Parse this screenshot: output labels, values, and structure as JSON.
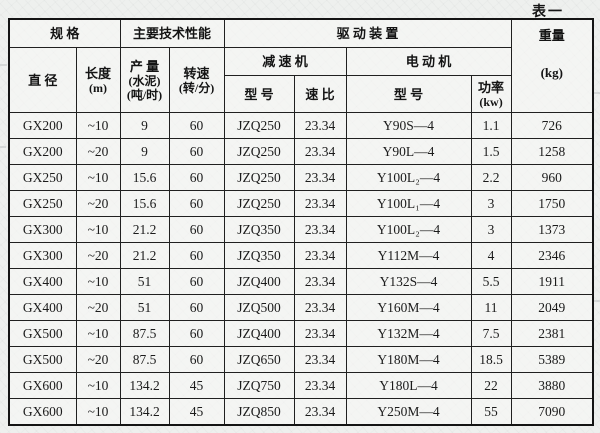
{
  "page": {
    "table_label": "表一"
  },
  "table": {
    "group_headers": {
      "spec": "规    格",
      "performance": "主要技术性能",
      "drive": "驱  动  装  置",
      "reducer": "减  速  机",
      "motor": "电  动  机"
    },
    "columns": {
      "diameter": "直  径",
      "length": [
        "长度",
        "(m)"
      ],
      "output": [
        "产 量",
        "(水泥)",
        "(吨/时)"
      ],
      "speed": [
        "转速",
        "(转/分)"
      ],
      "reducer_model": "型  号",
      "reducer_ratio": "速  比",
      "motor_model": "型      号",
      "motor_power": [
        "功率",
        "(kw)"
      ],
      "weight": [
        "重量",
        "(kg)"
      ]
    },
    "rows": [
      [
        "GX200",
        "~10",
        "9",
        "60",
        "JZQ250",
        "23.34",
        "Y90S—4",
        "1.1",
        "726"
      ],
      [
        "GX200",
        "~20",
        "9",
        "60",
        "JZQ250",
        "23.34",
        "Y90L—4",
        "1.5",
        "1258"
      ],
      [
        "GX250",
        "~10",
        "15.6",
        "60",
        "JZQ250",
        "23.34",
        "Y100L₂—4",
        "2.2",
        "960"
      ],
      [
        "GX250",
        "~20",
        "15.6",
        "60",
        "JZQ250",
        "23.34",
        "Y100L₁—4",
        "3",
        "1750"
      ],
      [
        "GX300",
        "~10",
        "21.2",
        "60",
        "JZQ350",
        "23.34",
        "Y100L₂—4",
        "3",
        "1373"
      ],
      [
        "GX300",
        "~20",
        "21.2",
        "60",
        "JZQ350",
        "23.34",
        "Y112M—4",
        "4",
        "2346"
      ],
      [
        "GX400",
        "~10",
        "51",
        "60",
        "JZQ400",
        "23.34",
        "Y132S—4",
        "5.5",
        "1911"
      ],
      [
        "GX400",
        "~20",
        "51",
        "60",
        "JZQ500",
        "23.34",
        "Y160M—4",
        "11",
        "2049"
      ],
      [
        "GX500",
        "~10",
        "87.5",
        "60",
        "JZQ400",
        "23.34",
        "Y132M—4",
        "7.5",
        "2381"
      ],
      [
        "GX500",
        "~20",
        "87.5",
        "60",
        "JZQ650",
        "23.34",
        "Y180M—4",
        "18.5",
        "5389"
      ],
      [
        "GX600",
        "~10",
        "134.2",
        "45",
        "JZQ750",
        "23.34",
        "Y180L—4",
        "22",
        "3880"
      ],
      [
        "GX600",
        "~10",
        "134.2",
        "45",
        "JZQ850",
        "23.34",
        "Y250M—4",
        "55",
        "7090"
      ]
    ]
  }
}
